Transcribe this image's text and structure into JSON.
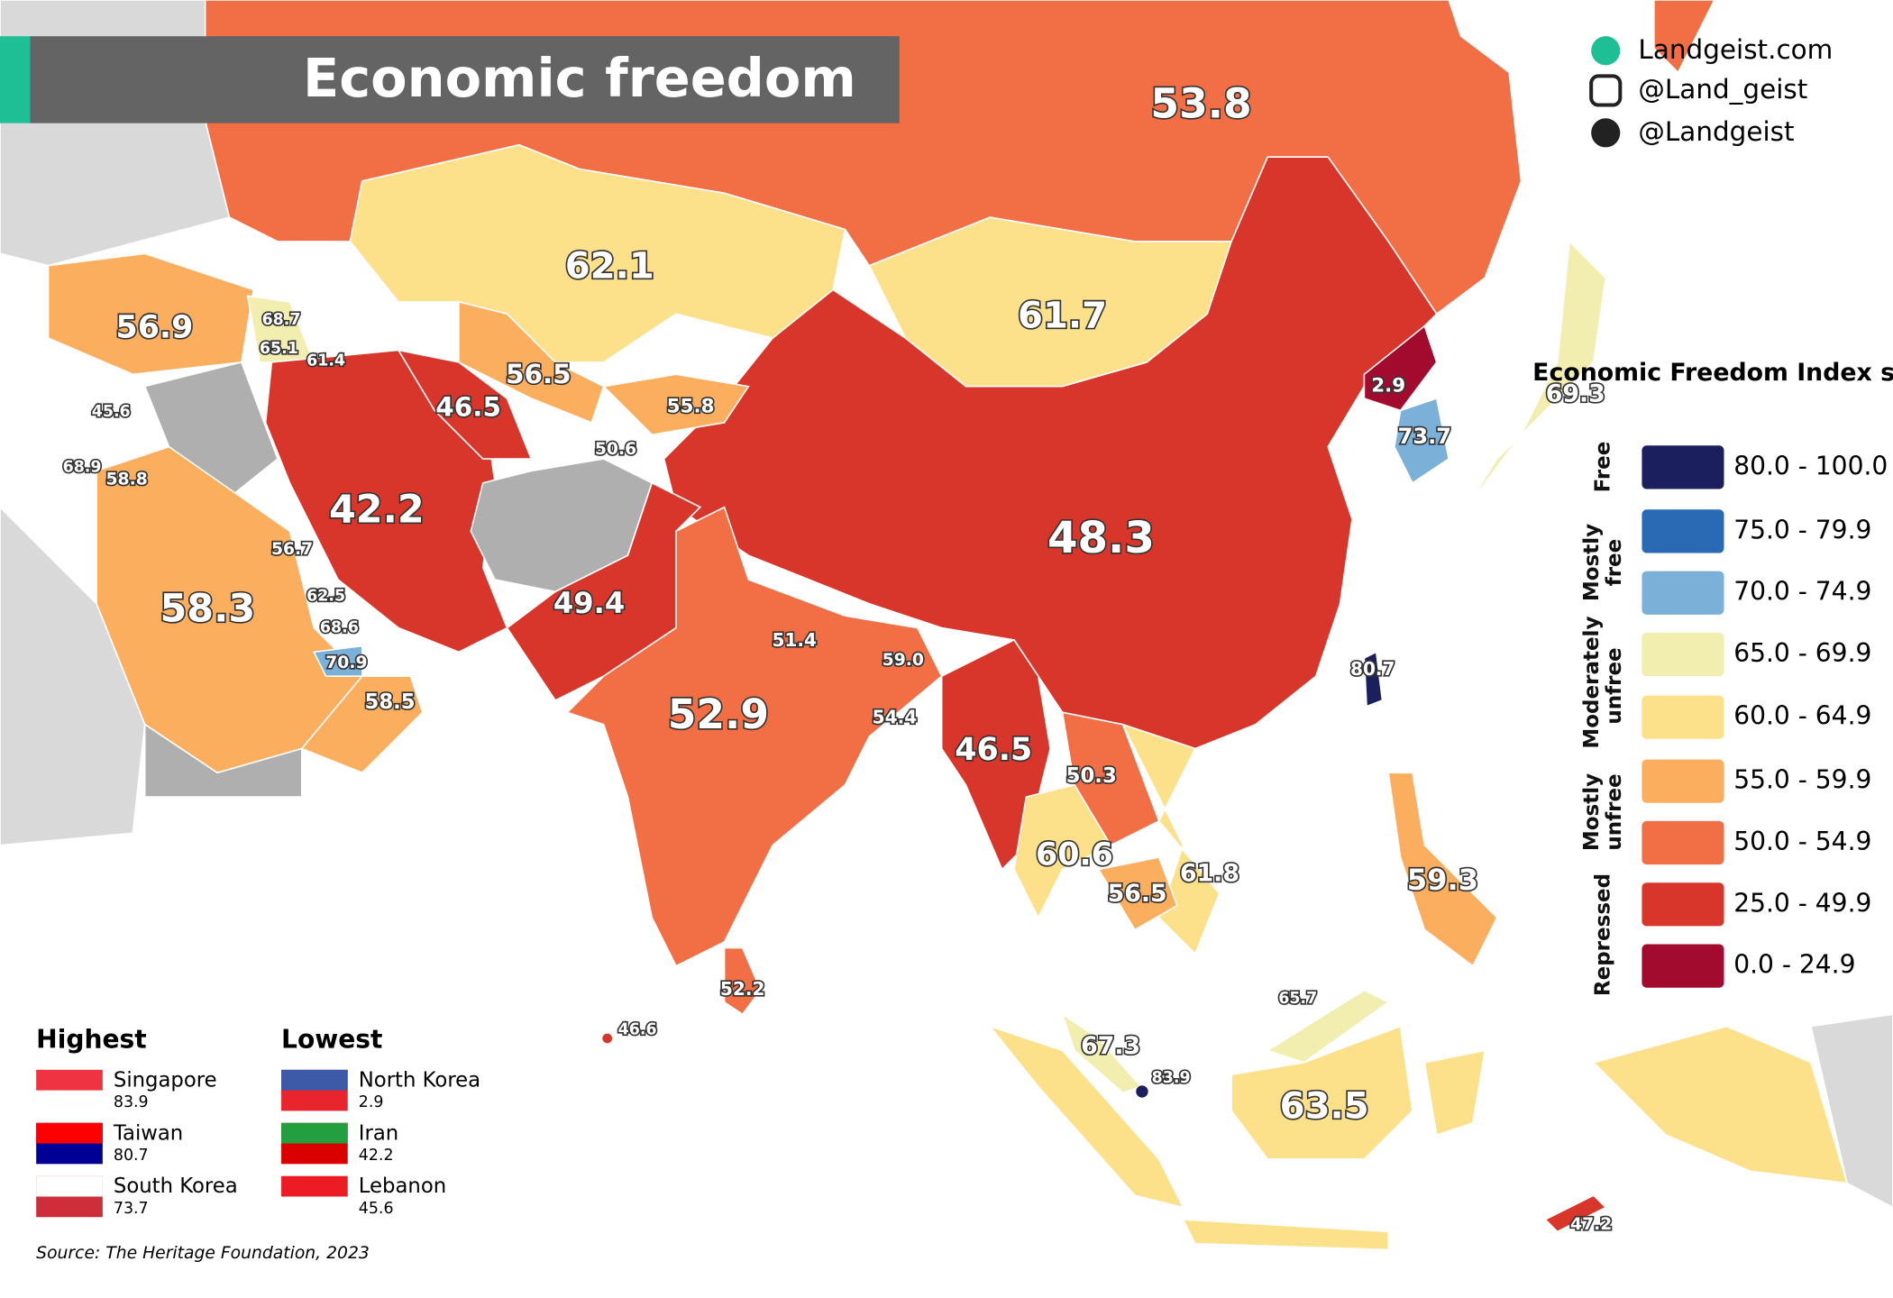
{
  "header": {
    "title": "Economic freedom"
  },
  "credits": [
    "Landgeist.com",
    "@Land_geist",
    "@Landgeist"
  ],
  "legend": {
    "title": "Economic Freedom Index score",
    "groups": [
      {
        "name": "Free",
        "ranges": [
          "80.0 - 100.0"
        ],
        "colors": [
          "#1b1f5e"
        ]
      },
      {
        "name": "Mostly free",
        "ranges": [
          "75.0 - 79.9",
          "70.0 - 74.9"
        ],
        "colors": [
          "#2a6ab5",
          "#7bb0d8"
        ]
      },
      {
        "name": "Moderately unfree",
        "ranges": [
          "65.0 - 69.9",
          "60.0 - 64.9"
        ],
        "colors": [
          "#f2eeb0",
          "#fde08a"
        ]
      },
      {
        "name": "Mostly unfree",
        "ranges": [
          "55.0 - 59.9",
          "50.0 - 54.9"
        ],
        "colors": [
          "#fbae5e",
          "#f26e44"
        ]
      },
      {
        "name": "Repressed",
        "ranges": [
          "25.0 - 49.9",
          "0.0 - 24.9"
        ],
        "colors": [
          "#d8362b",
          "#a30b2e"
        ]
      }
    ]
  },
  "map_labels": [
    "53.8",
    "62.1",
    "61.7",
    "56.9",
    "68.7",
    "65.1",
    "61.4",
    "56.5",
    "46.5",
    "55.8",
    "50.6",
    "45.6",
    "68.9",
    "58.8",
    "42.2",
    "56.7",
    "48.3",
    "2.9",
    "73.7",
    "69.3",
    "49.4",
    "62.5",
    "68.6",
    "70.9",
    "58.3",
    "58.5",
    "51.4",
    "59.0",
    "52.9",
    "54.4",
    "46.5",
    "80.7",
    "50.3",
    "60.6",
    "56.5",
    "61.8",
    "59.3",
    "52.2",
    "46.6",
    "65.7",
    "67.3",
    "83.9",
    "63.5",
    "47.2"
  ],
  "highest": {
    "title": "Highest",
    "items": [
      {
        "country": "Singapore",
        "score": "83.9"
      },
      {
        "country": "Taiwan",
        "score": "80.7"
      },
      {
        "country": "South Korea",
        "score": "73.7"
      }
    ]
  },
  "lowest": {
    "title": "Lowest",
    "items": [
      {
        "country": "North Korea",
        "score": "2.9"
      },
      {
        "country": "Iran",
        "score": "42.2"
      },
      {
        "country": "Lebanon",
        "score": "45.6"
      }
    ]
  },
  "source": "Source: The Heritage Foundation, 2023"
}
